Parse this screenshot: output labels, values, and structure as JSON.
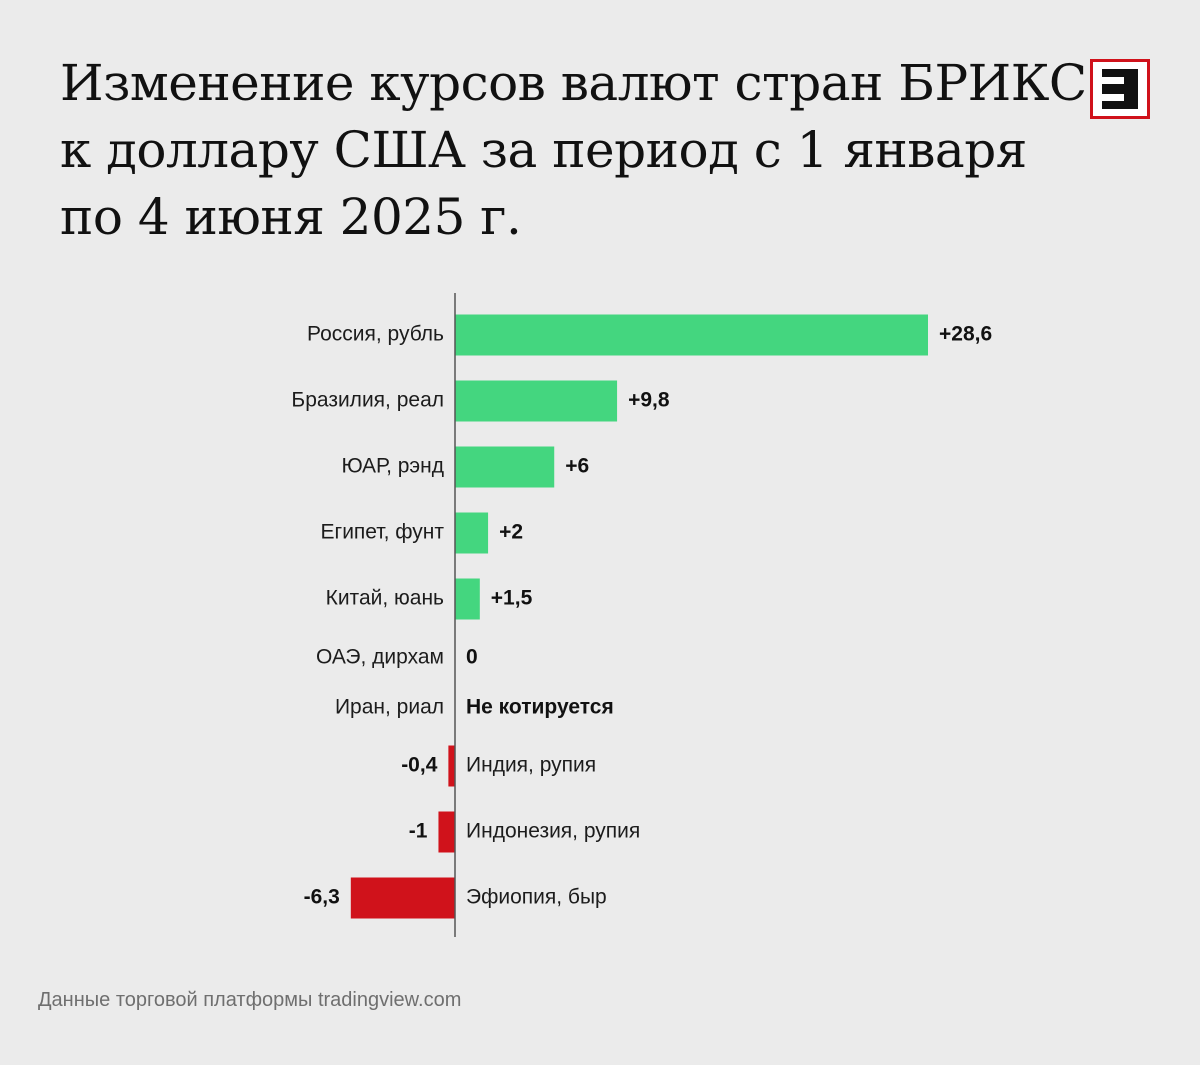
{
  "title": {
    "lines": [
      "Изменение курсов валют стран БРИКС",
      "к доллару США за период с 1 января",
      "по 4 июня 2025 г."
    ]
  },
  "logo": {
    "name": "logo-icon",
    "border_color": "#d0121b"
  },
  "source": "Данные торговой платформы tradingview.com",
  "colors": {
    "positive": "#44d67f",
    "negative": "#d0121b",
    "axis": "#555555"
  },
  "chart_data": {
    "type": "bar",
    "orientation": "horizontal",
    "title": "Изменение курсов валют стран БРИКС к доллару США за период с 1 января по 4 июня 2025 г.",
    "xlabel": "",
    "ylabel": "",
    "grid": false,
    "categories": [
      "Россия, рубль",
      "Бразилия, реал",
      "ЮАР, рэнд",
      "Египет, фунт",
      "Китай, юань",
      "ОАЭ, дирхам",
      "Иран, риал",
      "Индия, рупия",
      "Индонезия, рупия",
      "Эфиопия, быр"
    ],
    "values": [
      28.6,
      9.8,
      6,
      2,
      1.5,
      0,
      null,
      -0.4,
      -1,
      -6.3
    ],
    "value_labels": [
      "+28,6",
      "+9,8",
      "+6",
      "+2",
      "+1,5",
      "0",
      "Не котируется",
      "-0,4",
      "-1",
      "-6,3"
    ]
  }
}
